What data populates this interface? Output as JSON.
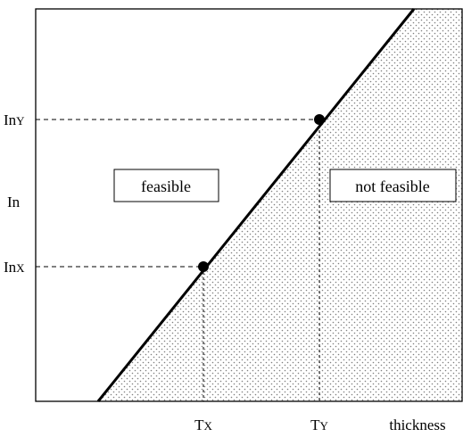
{
  "diagram": {
    "y_axis": {
      "label": "In",
      "ticks": [
        {
          "main": "In",
          "sub": "Y"
        },
        {
          "main": "In",
          "sub": "X"
        }
      ]
    },
    "x_axis": {
      "label": "thickness",
      "ticks": [
        {
          "main": "T",
          "sub": "X"
        },
        {
          "main": "T",
          "sub": "Y"
        }
      ]
    },
    "regions": {
      "feasible_label": "feasible",
      "not_feasible_label": "not feasible"
    },
    "colors": {
      "line": "#000000",
      "dots": "#808080",
      "background": "#ffffff"
    }
  }
}
